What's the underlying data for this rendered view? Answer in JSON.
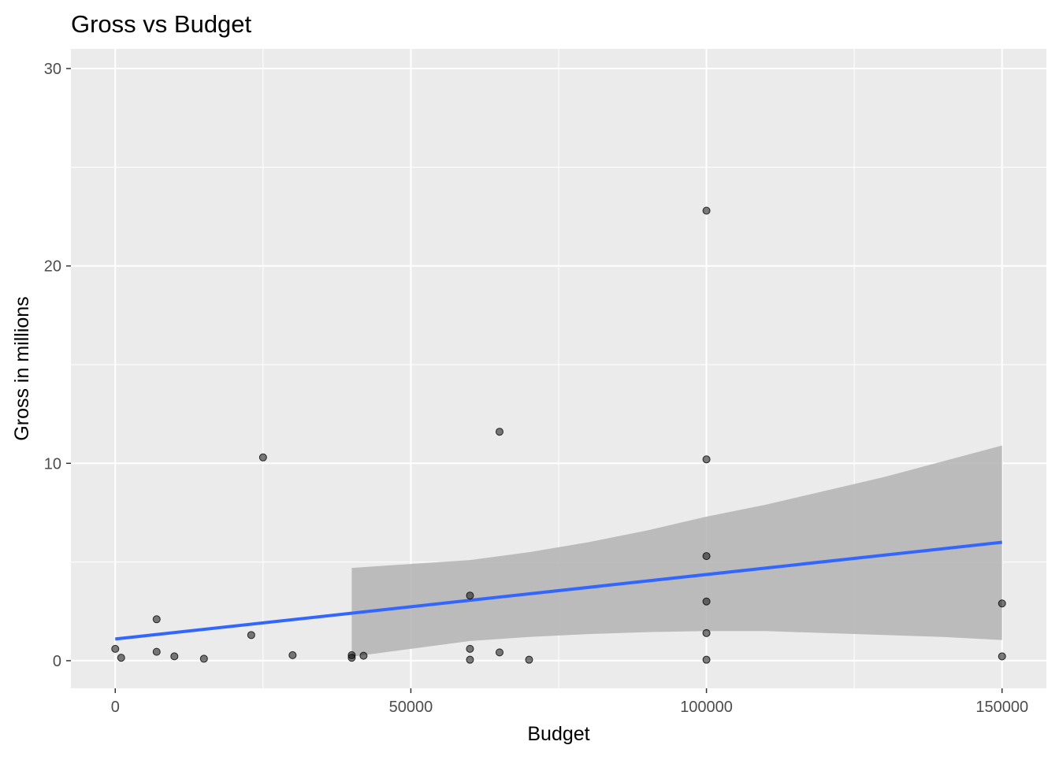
{
  "chart_data": {
    "type": "scatter",
    "title": "Gross vs Budget",
    "xlabel": "Budget",
    "ylabel": "Gross in millions",
    "xlim": [
      -7500,
      157500
    ],
    "ylim": [
      -1.4,
      31.0
    ],
    "x_ticks": [
      0,
      50000,
      100000,
      150000
    ],
    "x_tick_labels": [
      "0",
      "50000",
      "100000",
      "150000"
    ],
    "x_minor": [
      25000,
      75000,
      125000
    ],
    "y_ticks": [
      0,
      10,
      20,
      30
    ],
    "y_tick_labels": [
      "0",
      "10",
      "20",
      "30"
    ],
    "y_minor": [
      5,
      15,
      25
    ],
    "grid": true,
    "legend": "none",
    "colors": {
      "panel": "#ebebeb",
      "grid": "#ffffff",
      "points": "#000000",
      "fit_line": "#3366ff",
      "confidence_band": "#b3b3b3"
    },
    "points": [
      {
        "x": 0,
        "y": 0.6
      },
      {
        "x": 1000,
        "y": 0.15
      },
      {
        "x": 7000,
        "y": 2.1
      },
      {
        "x": 7000,
        "y": 0.45
      },
      {
        "x": 10000,
        "y": 0.22
      },
      {
        "x": 15000,
        "y": 0.1
      },
      {
        "x": 23000,
        "y": 1.3
      },
      {
        "x": 25000,
        "y": 10.3
      },
      {
        "x": 30000,
        "y": 0.28
      },
      {
        "x": 40000,
        "y": 0.28
      },
      {
        "x": 40000,
        "y": 0.15
      },
      {
        "x": 42000,
        "y": 0.25
      },
      {
        "x": 60000,
        "y": 3.3
      },
      {
        "x": 60000,
        "y": 0.6
      },
      {
        "x": 60000,
        "y": 0.05
      },
      {
        "x": 65000,
        "y": 11.6
      },
      {
        "x": 65000,
        "y": 0.42
      },
      {
        "x": 70000,
        "y": 0.05
      },
      {
        "x": 100000,
        "y": 22.8
      },
      {
        "x": 100000,
        "y": 10.2
      },
      {
        "x": 100000,
        "y": 5.3
      },
      {
        "x": 100000,
        "y": 3.0
      },
      {
        "x": 100000,
        "y": 1.4
      },
      {
        "x": 100000,
        "y": 0.05
      },
      {
        "x": 150000,
        "y": 2.9
      },
      {
        "x": 150000,
        "y": 0.22
      }
    ],
    "fit_line": {
      "x": [
        0,
        150000
      ],
      "y": [
        1.1,
        6.0
      ]
    },
    "confidence_band": {
      "x": [
        40000,
        50000,
        60000,
        70000,
        80000,
        90000,
        100000,
        110000,
        120000,
        130000,
        140000,
        150000
      ],
      "upper": [
        4.7,
        4.9,
        5.1,
        5.5,
        6.0,
        6.6,
        7.3,
        7.9,
        8.6,
        9.3,
        10.1,
        10.9
      ],
      "lower": [
        0.2,
        0.6,
        1.0,
        1.2,
        1.35,
        1.45,
        1.5,
        1.5,
        1.4,
        1.3,
        1.2,
        1.05
      ]
    }
  }
}
